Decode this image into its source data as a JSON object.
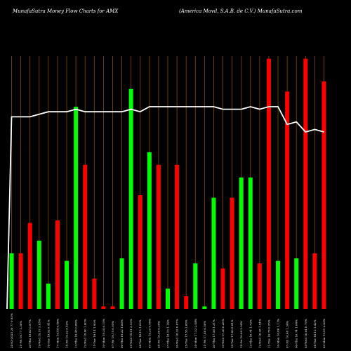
{
  "title_left": "MunafaSutra  Money Flow  Charts for AMX",
  "title_right": "(America  Movil,  S.A.B. de   C.V.) MunafaSutra.com",
  "colors": {
    "background": "#000000",
    "up": "#00ff00",
    "down": "#ff0000",
    "grid": "#8a4b00",
    "line": "#ffffff"
  },
  "chart_data": {
    "type": "bar",
    "title": "MunafaSutra  Money Flow  Charts for AMX",
    "subtitle": "(America  Movil,  S.A.B. de   C.V.) MunafaSutra.com",
    "grid": true,
    "categories": [
      "24-03-2025 20.77 0.93%",
      "21-Fri 19.77 1.30%",
      "20-Thu 19.62 0.97%",
      "19-Wed 19.57 3.05%",
      "18-Tue 19.52 0.41%",
      "17-Mon 19.44 0.48%",
      "14-Fri 19.22 0.42%",
      "13-Thu 19.45 0.80%",
      "12-Wed 19.60 1.60%",
      "11-Tue 19.14 1.93%",
      "10-Mon 19.34 0.15%",
      "07-Fri 19.15 0.05%",
      "06-Thu 19.22 1.80%",
      "05-Wed 19.01 3.13%",
      "04-Tue 18.15 1.02%",
      "03-Mon 18.25 0.69%",
      "28-Fri 18.30 0.25%",
      "27-Thu 18.13 1.14%",
      "26-Wed 18.32 0.67%",
      "25-Tue 17.55 1.68%",
      "24-Mon 17.23 2.44%",
      "21-Fri 17.46 0.50%",
      "20-Thu 17.39 1.31%",
      "19-Wed 17.36 0.28%",
      "18-Tue 17.40 0.01%",
      "14-Fri 16.89 2.54%",
      "13-Thu 16.74 1.72%",
      "12-Wed 16.38 1.54%",
      "11-Tue 16.79 0.25%",
      "10-Mon 16.86 1.11%",
      "07-Fri 16.48 1.34%",
      "06-Thu 16.74 1.04%",
      "05-Wed 16.64 0.79%",
      "04-Tue 16.12 1.42%",
      "03-Mon 15.91 2.83%"
    ],
    "values": [
      22,
      22,
      34,
      27,
      10,
      35,
      19,
      80,
      57,
      12,
      1,
      1,
      20,
      87,
      45,
      62,
      57,
      8,
      57,
      5,
      18,
      1,
      44,
      16,
      44,
      52,
      52,
      18,
      99,
      19,
      86,
      20,
      99,
      22,
      90
    ],
    "directions": [
      "up",
      "down",
      "down",
      "up",
      "up",
      "down",
      "up",
      "up",
      "down",
      "down",
      "down",
      "down",
      "up",
      "up",
      "down",
      "up",
      "down",
      "up",
      "down",
      "down",
      "up",
      "up",
      "up",
      "down",
      "down",
      "up",
      "up",
      "down",
      "down",
      "up",
      "down",
      "up",
      "down",
      "down",
      "down"
    ],
    "line": [
      76,
      76,
      76,
      77,
      78,
      78,
      78,
      79,
      78,
      78,
      78,
      78,
      78,
      79,
      78,
      80,
      80,
      80,
      80,
      80,
      80,
      80,
      80,
      79,
      79,
      79,
      80,
      79,
      80,
      80,
      73,
      74,
      70,
      71,
      70
    ],
    "ylim": [
      0,
      100
    ]
  }
}
